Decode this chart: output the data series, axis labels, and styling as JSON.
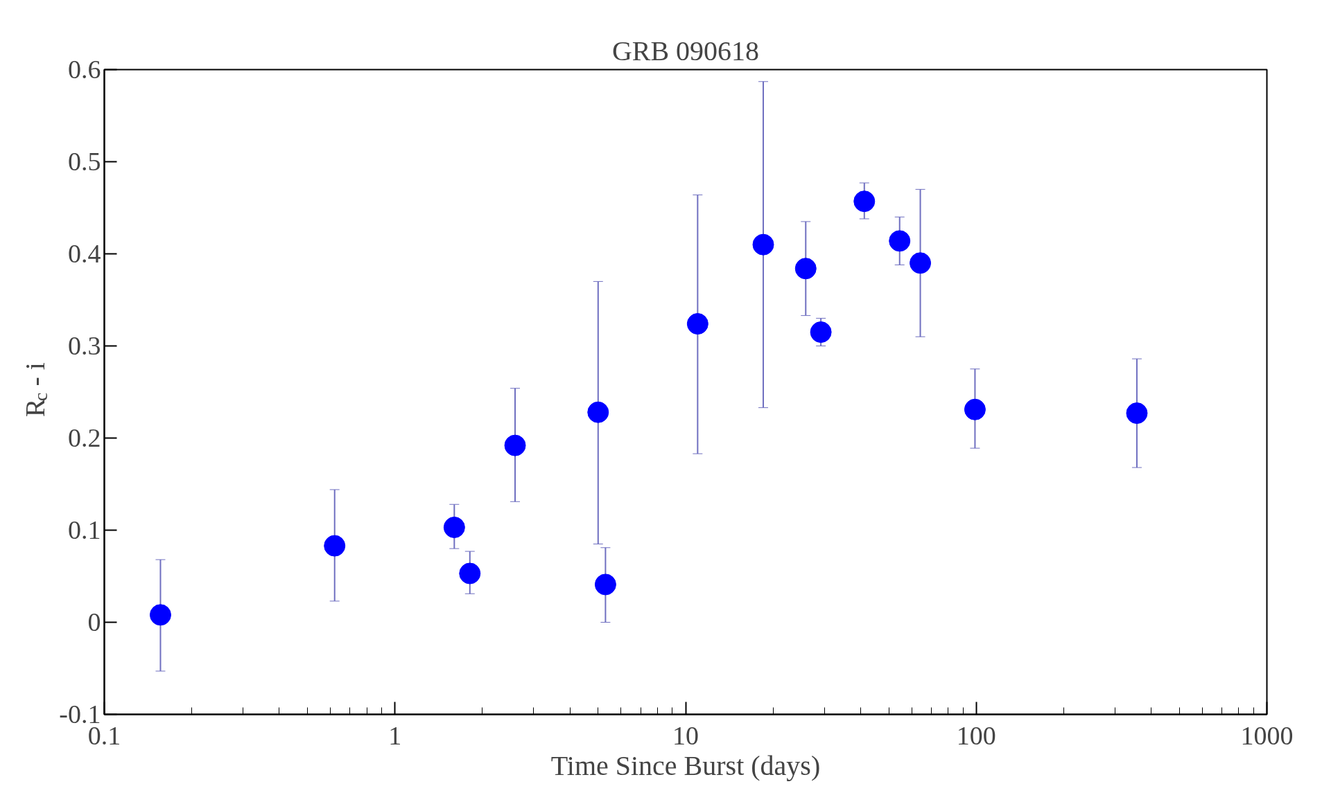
{
  "chart_data": {
    "type": "scatter",
    "title": "GRB 090618",
    "xlabel": "Time Since Burst (days)",
    "ylabel": "R$_{c}$ - i",
    "log": "x",
    "xlim": [
      0.1,
      1000
    ],
    "xticks": [
      0.1,
      1,
      10,
      100,
      1000
    ],
    "ylim": [
      -0.1,
      0.6
    ],
    "yticks": [
      -0.1,
      0,
      0.1,
      0.2,
      0.3,
      0.4,
      0.5,
      0.6
    ],
    "grid": false,
    "marker": "circle",
    "series": [
      {
        "color": "#0000ff",
        "x": [
          0.156,
          0.62,
          1.6,
          1.81,
          2.59,
          5.0,
          5.3,
          11.0,
          18.5,
          25.9,
          29.2,
          41.2,
          54.5,
          64.2,
          99,
          357
        ],
        "values": [
          0.008,
          0.083,
          0.103,
          0.053,
          0.192,
          0.228,
          0.041,
          0.324,
          0.41,
          0.384,
          0.315,
          0.457,
          0.414,
          0.39,
          0.231,
          0.227
        ],
        "errors": [
          [
            -0.053,
            0.068
          ],
          [
            0.023,
            0.144
          ],
          [
            0.08,
            0.128
          ],
          [
            0.031,
            0.077
          ],
          [
            0.131,
            0.254
          ],
          [
            0.085,
            0.37
          ],
          [
            0.0,
            0.081
          ],
          [
            0.183,
            0.464
          ],
          [
            0.233,
            0.587
          ],
          [
            0.333,
            0.435
          ],
          [
            0.3,
            0.33
          ],
          [
            0.438,
            0.477
          ],
          [
            0.388,
            0.44
          ],
          [
            0.31,
            0.47
          ],
          [
            0.189,
            0.275
          ],
          [
            0.168,
            0.286
          ]
        ]
      }
    ]
  }
}
